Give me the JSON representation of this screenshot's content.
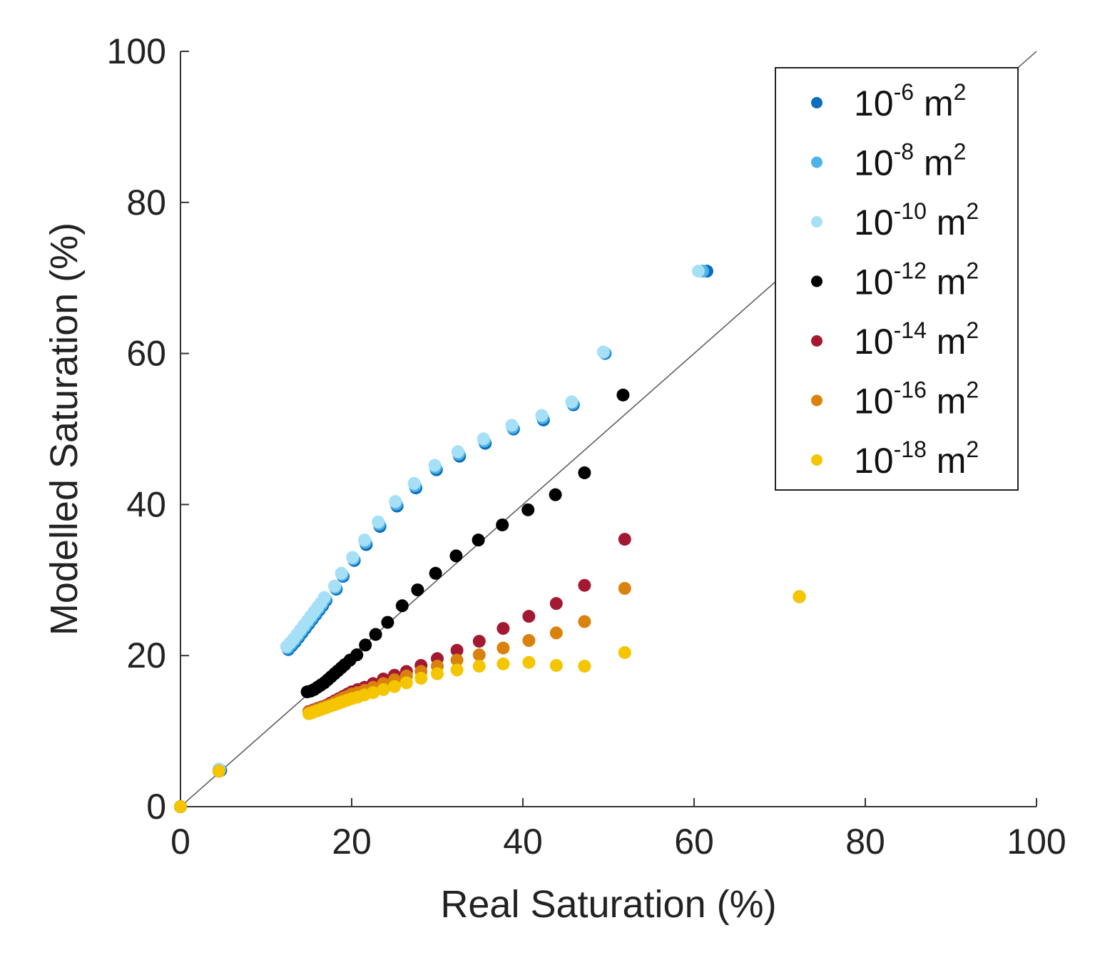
{
  "chart_data": {
    "type": "scatter",
    "title": "",
    "xlabel": "Real Saturation (%)",
    "ylabel": "Modelled Saturation (%)",
    "xlim": [
      0,
      100
    ],
    "ylim": [
      0,
      100
    ],
    "xticks": [
      "0",
      "20",
      "40",
      "60",
      "80",
      "100"
    ],
    "yticks": [
      "0",
      "20",
      "40",
      "60",
      "80",
      "100"
    ],
    "grid": false,
    "legend_position": "top-right",
    "reference_line": {
      "name": "1:1 line",
      "x": [
        0,
        100
      ],
      "y": [
        0,
        100
      ],
      "color": "#555555"
    },
    "series": [
      {
        "name": "10-6 m2",
        "base": "10",
        "exponent": "-6",
        "unit": "m",
        "unit_exp": "2",
        "color": "#0a6ebd",
        "x": [
          0,
          4.7,
          12.6,
          13.0,
          13.4,
          13.8,
          14.2,
          14.6,
          15.0,
          15.4,
          15.8,
          16.2,
          16.6,
          17.0,
          18.2,
          19.0,
          20.3,
          21.7,
          23.3,
          25.3,
          27.5,
          29.9,
          32.6,
          35.6,
          38.9,
          42.4,
          45.9,
          49.6,
          61.5
        ],
        "y": [
          0,
          4.8,
          20.8,
          21.3,
          21.8,
          22.4,
          23.0,
          23.6,
          24.2,
          24.8,
          25.4,
          26.0,
          26.6,
          27.3,
          28.8,
          30.5,
          32.6,
          34.7,
          37.1,
          39.8,
          42.2,
          44.6,
          46.4,
          48.1,
          50.0,
          51.2,
          53.2,
          60.0,
          70.9
        ]
      },
      {
        "name": "10-8 m2",
        "base": "10",
        "exponent": "-8",
        "unit": "m",
        "unit_exp": "2",
        "color": "#4db3e6",
        "x": [
          0,
          4.6,
          12.5,
          12.9,
          13.3,
          13.7,
          14.1,
          14.5,
          14.9,
          15.3,
          15.7,
          16.1,
          16.5,
          16.9,
          18.1,
          18.9,
          20.2,
          21.6,
          23.2,
          25.2,
          27.4,
          29.8,
          32.5,
          35.5,
          38.8,
          42.3,
          45.8,
          49.5,
          61.0
        ],
        "y": [
          0,
          4.9,
          21.0,
          21.5,
          22.0,
          22.6,
          23.2,
          23.8,
          24.4,
          25.0,
          25.6,
          26.2,
          26.8,
          27.5,
          29.0,
          30.7,
          32.8,
          35.0,
          37.4,
          40.1,
          42.5,
          44.9,
          46.7,
          48.4,
          50.2,
          51.5,
          53.4,
          60.1,
          70.9
        ]
      },
      {
        "name": "10-10 m2",
        "base": "10",
        "exponent": "-10",
        "unit": "m",
        "unit_exp": "2",
        "color": "#a6e0f7",
        "x": [
          0,
          4.5,
          12.4,
          12.8,
          13.2,
          13.6,
          14.0,
          14.4,
          14.8,
          15.2,
          15.6,
          16.0,
          16.4,
          16.8,
          18.0,
          18.8,
          20.1,
          21.5,
          23.1,
          25.1,
          27.3,
          29.7,
          32.4,
          35.4,
          38.7,
          42.2,
          45.7,
          49.4,
          60.5
        ],
        "y": [
          0,
          5.0,
          21.2,
          21.7,
          22.2,
          22.8,
          23.4,
          24.0,
          24.6,
          25.2,
          25.8,
          26.4,
          27.0,
          27.7,
          29.2,
          30.9,
          33.0,
          35.3,
          37.7,
          40.4,
          42.8,
          45.2,
          47.0,
          48.7,
          50.5,
          51.8,
          53.6,
          60.2,
          70.9
        ]
      },
      {
        "name": "10-12 m2",
        "base": "10",
        "exponent": "-12",
        "unit": "m",
        "unit_exp": "2",
        "color": "#000000",
        "x": [
          0,
          4.5,
          14.8,
          15.2,
          15.6,
          16.0,
          16.4,
          16.8,
          17.2,
          17.6,
          18.0,
          18.4,
          18.8,
          19.2,
          19.8,
          20.6,
          21.6,
          22.8,
          24.2,
          25.9,
          27.7,
          29.8,
          32.2,
          34.8,
          37.6,
          40.6,
          43.8,
          47.2,
          51.7
        ],
        "y": [
          0,
          4.7,
          15.2,
          15.3,
          15.5,
          15.8,
          16.1,
          16.4,
          16.8,
          17.2,
          17.6,
          18.0,
          18.4,
          18.8,
          19.4,
          20.1,
          21.4,
          22.8,
          24.4,
          26.6,
          28.7,
          30.9,
          33.2,
          35.3,
          37.3,
          39.3,
          41.3,
          44.2,
          54.5
        ]
      },
      {
        "name": "10-14 m2",
        "base": "10",
        "exponent": "-14",
        "unit": "m",
        "unit_exp": "2",
        "color": "#a31932",
        "x": [
          0,
          4.5,
          15.0,
          15.5,
          16.0,
          16.5,
          17.0,
          17.5,
          18.0,
          18.5,
          19.0,
          19.5,
          20.0,
          20.7,
          21.5,
          22.5,
          23.7,
          25.0,
          26.4,
          28.1,
          30.0,
          32.3,
          34.9,
          37.7,
          40.7,
          43.9,
          47.2,
          51.9,
          72.3
        ],
        "y": [
          0,
          4.7,
          12.6,
          12.8,
          13.0,
          13.2,
          13.4,
          13.7,
          14.0,
          14.3,
          14.6,
          14.9,
          15.2,
          15.5,
          15.8,
          16.3,
          16.9,
          17.4,
          17.9,
          18.7,
          19.6,
          20.7,
          21.9,
          23.6,
          25.2,
          26.9,
          29.3,
          35.4,
          27.8
        ]
      },
      {
        "name": "10-16 m2",
        "base": "10",
        "exponent": "-16",
        "unit": "m",
        "unit_exp": "2",
        "color": "#d9820d",
        "x": [
          0,
          4.5,
          15.0,
          15.5,
          16.0,
          16.5,
          17.0,
          17.5,
          18.0,
          18.5,
          19.0,
          19.5,
          20.0,
          20.7,
          21.5,
          22.5,
          23.7,
          25.0,
          26.4,
          28.1,
          30.0,
          32.3,
          34.9,
          37.7,
          40.7,
          43.9,
          47.2,
          51.9,
          72.3
        ],
        "y": [
          0,
          4.7,
          12.5,
          12.7,
          12.9,
          13.1,
          13.3,
          13.5,
          13.8,
          14.1,
          14.4,
          14.6,
          14.9,
          15.1,
          15.4,
          15.8,
          16.3,
          16.8,
          17.3,
          17.9,
          18.6,
          19.4,
          20.1,
          21.0,
          22.0,
          23.0,
          24.5,
          28.9,
          27.8
        ]
      },
      {
        "name": "10-18 m2",
        "base": "10",
        "exponent": "-18",
        "unit": "m",
        "unit_exp": "2",
        "color": "#f5c500",
        "x": [
          0,
          4.5,
          15.0,
          15.5,
          16.0,
          16.5,
          17.0,
          17.5,
          18.0,
          18.5,
          19.0,
          19.5,
          20.0,
          20.7,
          21.5,
          22.5,
          23.7,
          25.0,
          26.4,
          28.1,
          30.0,
          32.3,
          34.9,
          37.7,
          40.7,
          43.9,
          47.2,
          51.9,
          72.3
        ],
        "y": [
          0,
          4.7,
          12.3,
          12.5,
          12.7,
          12.9,
          13.1,
          13.3,
          13.5,
          13.7,
          13.9,
          14.1,
          14.3,
          14.5,
          14.8,
          15.1,
          15.5,
          15.9,
          16.4,
          17.0,
          17.6,
          18.1,
          18.6,
          18.9,
          19.1,
          18.7,
          18.6,
          20.4,
          27.8
        ]
      }
    ]
  }
}
